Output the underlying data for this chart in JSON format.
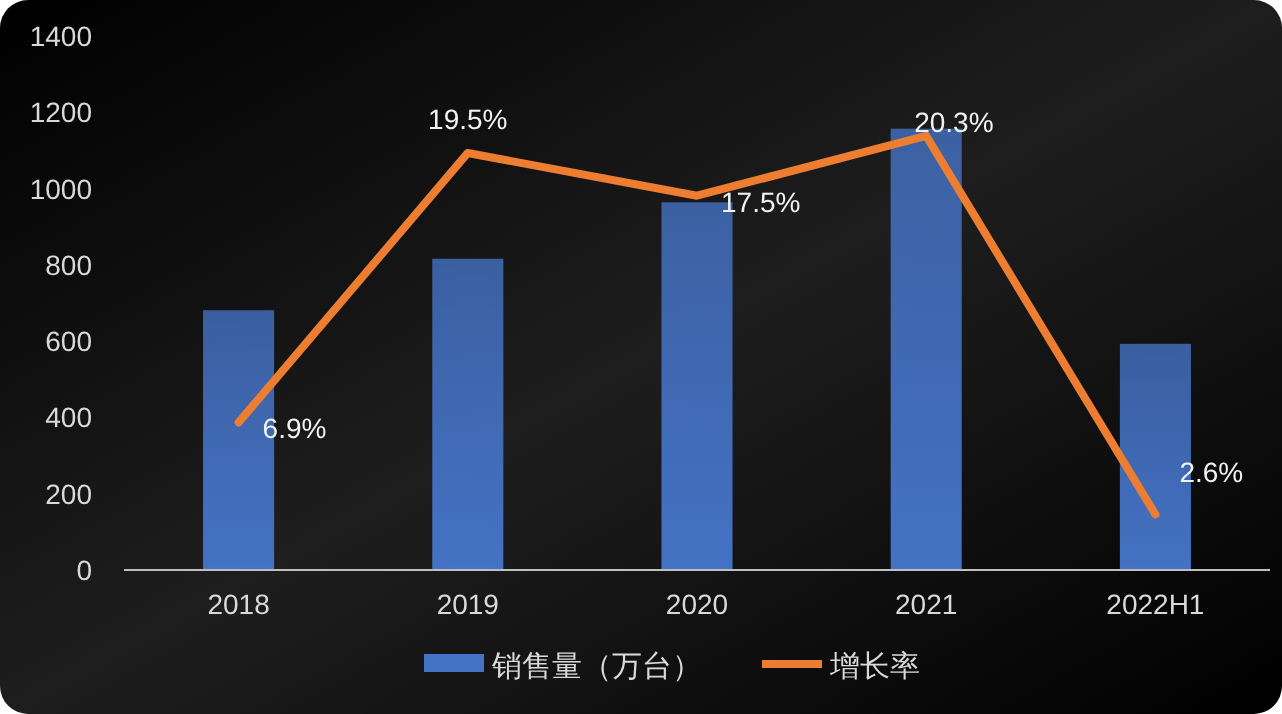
{
  "chart_data": {
    "type": "bar",
    "categories": [
      "2018",
      "2019",
      "2020",
      "2021",
      "2022H1"
    ],
    "series": [
      {
        "name": "销售量（万台）",
        "color": "#4472c4",
        "values": [
          681,
          816,
          964,
          1157,
          593
        ]
      },
      {
        "name": "增长率",
        "type": "line",
        "axis": "y2",
        "color": "#ed7d31",
        "values": [
          6.9,
          19.5,
          17.5,
          20.3,
          2.6
        ],
        "value_labels": [
          "6.9%",
          "19.5%",
          "17.5%",
          "20.3%",
          "2.6%"
        ]
      }
    ],
    "ylim": [
      0,
      1400
    ],
    "yticks": [
      0,
      200,
      400,
      600,
      800,
      1000,
      1200,
      1400
    ],
    "grid": false,
    "legend": "bottom"
  }
}
